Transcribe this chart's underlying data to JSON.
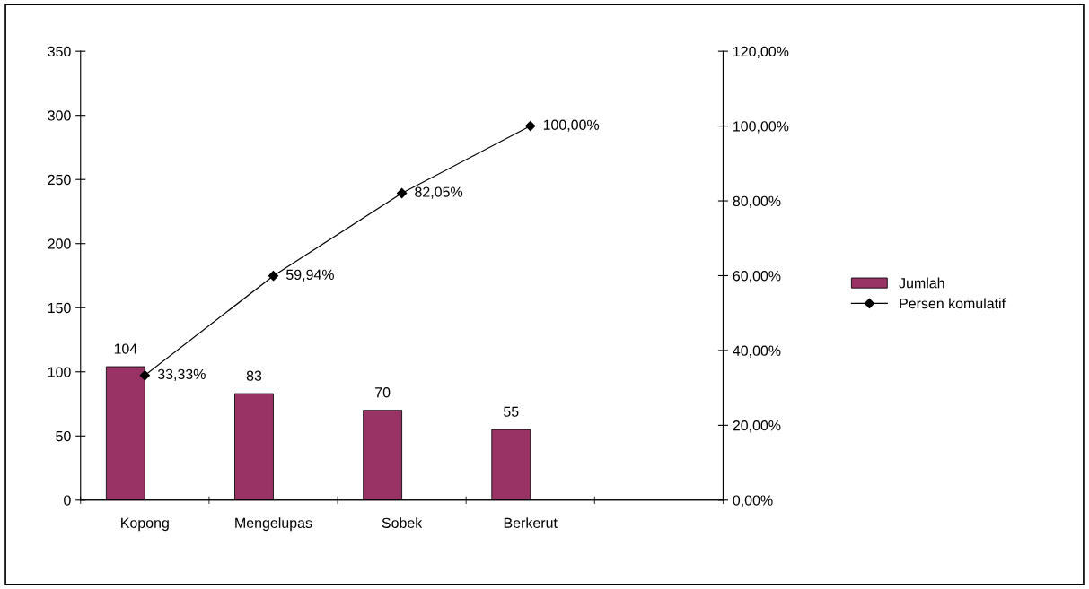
{
  "chart_data": {
    "type": "bar",
    "categories": [
      "Kopong",
      "Mengelupas",
      "Sobek",
      "Berkerut",
      null
    ],
    "series": [
      {
        "name": "Jumlah",
        "color": "#993366",
        "values": [
          104,
          83,
          70,
          55,
          null
        ]
      },
      {
        "name": "Persen komulatif",
        "type": "line",
        "axis": "y2",
        "color": "#000000",
        "marker": "diamond",
        "line_style": "solid",
        "values": [
          33.33,
          59.94,
          82.05,
          100,
          null
        ],
        "value_labels": [
          "33,33%",
          "59,94%",
          "82,05%",
          "100,00%",
          null
        ]
      }
    ],
    "data_labels": true,
    "ylim": [
      0,
      350
    ],
    "yticks": [
      0,
      50,
      100,
      150,
      200,
      250,
      300,
      350
    ],
    "y2lim": [
      0,
      120
    ],
    "y2ticks": [
      {
        "value": 0,
        "label": "0,00%"
      },
      {
        "value": 20,
        "label": "20,00%"
      },
      {
        "value": 40,
        "label": "40,00%"
      },
      {
        "value": 60,
        "label": "60,00%"
      },
      {
        "value": 80,
        "label": "80,00%"
      },
      {
        "value": 100,
        "label": "100,00%"
      },
      {
        "value": 120,
        "label": "120,00%"
      }
    ],
    "grid": false,
    "legend": "right"
  }
}
